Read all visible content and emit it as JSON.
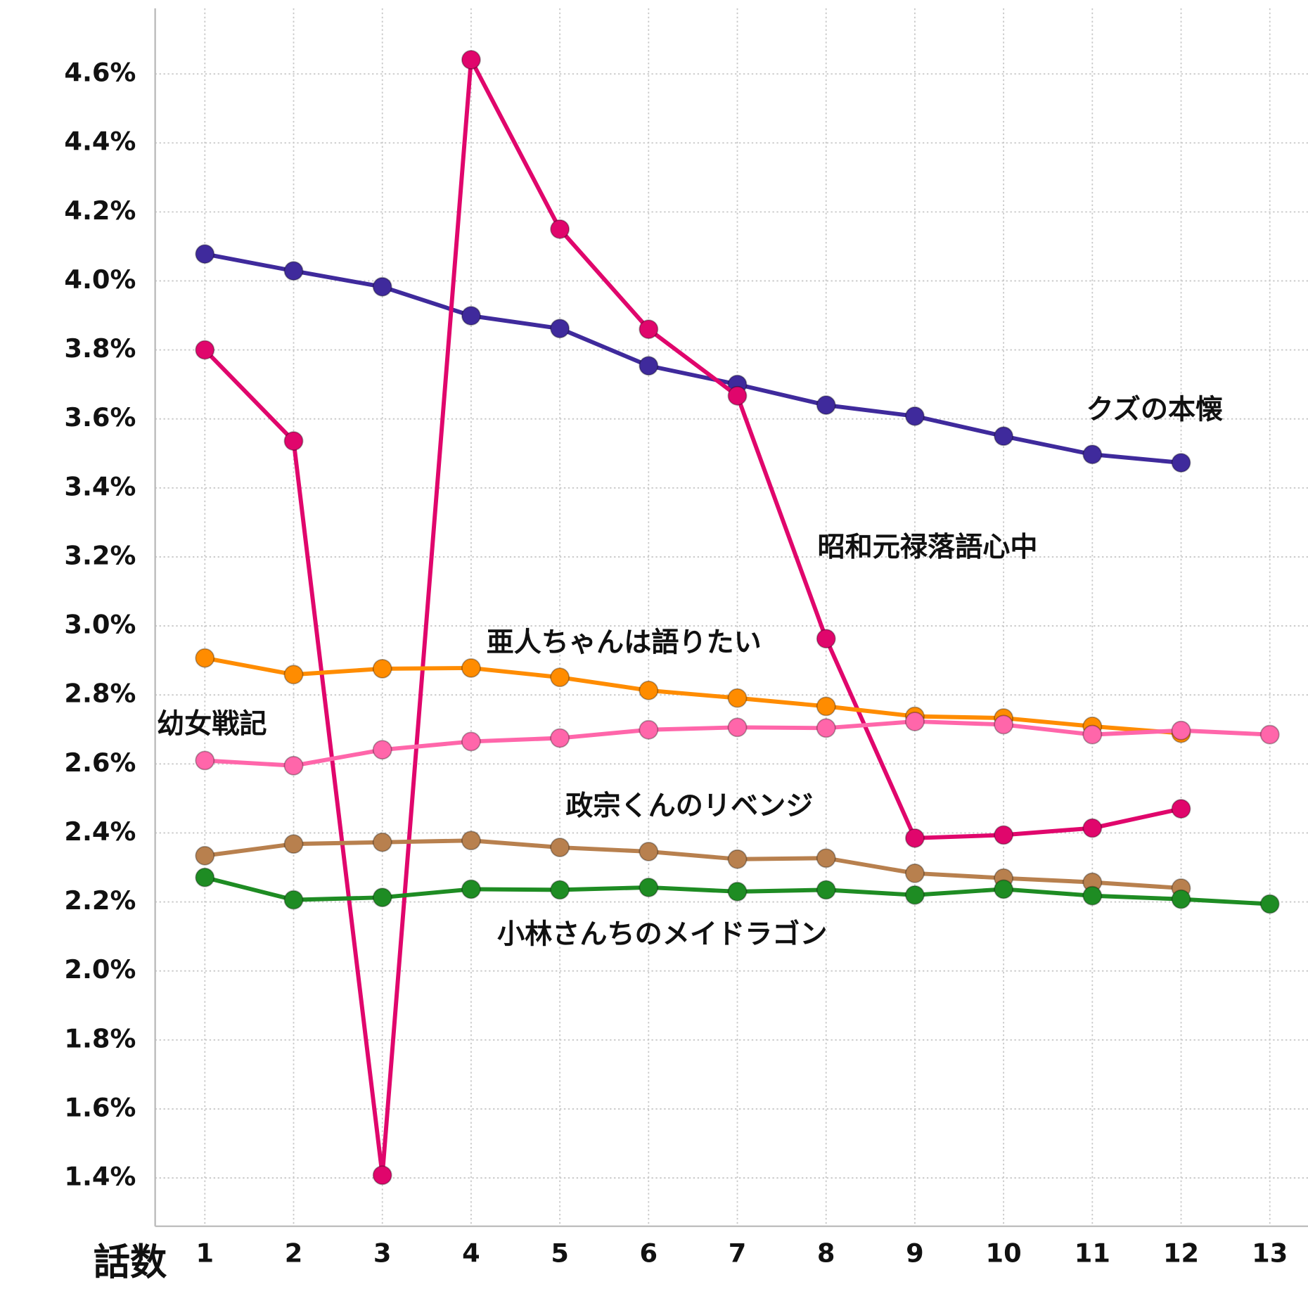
{
  "chart_data": {
    "type": "line",
    "x_label": "話数",
    "x": [
      1,
      2,
      3,
      4,
      5,
      6,
      7,
      8,
      9,
      10,
      11,
      12,
      13
    ],
    "xlim": [
      0.44,
      13.43
    ],
    "xticks": [
      1,
      2,
      3,
      4,
      5,
      6,
      7,
      8,
      9,
      10,
      11,
      12,
      13
    ],
    "ylim": [
      1.26,
      4.79
    ],
    "yticks": [
      {
        "value": 1.4,
        "label": "1.4%"
      },
      {
        "value": 1.6,
        "label": "1.6%"
      },
      {
        "value": 1.8,
        "label": "1.8%"
      },
      {
        "value": 2.0,
        "label": "2.0%"
      },
      {
        "value": 2.2,
        "label": "2.2%"
      },
      {
        "value": 2.4,
        "label": "2.4%"
      },
      {
        "value": 2.6,
        "label": "2.6%"
      },
      {
        "value": 2.8,
        "label": "2.8%"
      },
      {
        "value": 3.0,
        "label": "3.0%"
      },
      {
        "value": 3.2,
        "label": "3.2%"
      },
      {
        "value": 3.4,
        "label": "3.4%"
      },
      {
        "value": 3.6,
        "label": "3.6%"
      },
      {
        "value": 3.8,
        "label": "3.8%"
      },
      {
        "value": 4.0,
        "label": "4.0%"
      },
      {
        "value": 4.2,
        "label": "4.2%"
      },
      {
        "value": 4.4,
        "label": "4.4%"
      },
      {
        "value": 4.6,
        "label": "4.6%"
      }
    ],
    "grid": true,
    "series": [
      {
        "name": "クズの本懐",
        "color": "#3f2a9c",
        "values": [
          4.078,
          4.029,
          3.983,
          3.899,
          3.862,
          3.754,
          3.7,
          3.64,
          3.608,
          3.55,
          3.497,
          3.473,
          null
        ]
      },
      {
        "name": "昭和元禄落語心中",
        "color": "#e0066c",
        "values": [
          3.8,
          3.536,
          1.408,
          4.641,
          4.15,
          3.86,
          3.667,
          2.963,
          2.385,
          2.394,
          2.414,
          2.47,
          null
        ]
      },
      {
        "name": "亜人ちゃんは語りたい",
        "color": "#ff8c00",
        "values": [
          2.907,
          2.859,
          2.876,
          2.878,
          2.851,
          2.813,
          2.791,
          2.767,
          2.738,
          2.733,
          2.709,
          2.689,
          null
        ]
      },
      {
        "name": "幼女戦記",
        "color": "#ff66aa",
        "values": [
          2.61,
          2.595,
          2.641,
          2.665,
          2.675,
          2.699,
          2.706,
          2.704,
          2.723,
          2.714,
          2.685,
          2.697,
          2.685
        ]
      },
      {
        "name": "政宗くんのリベンジ",
        "color": "#b8804e",
        "values": [
          2.334,
          2.368,
          2.373,
          2.378,
          2.358,
          2.346,
          2.324,
          2.327,
          2.283,
          2.269,
          2.257,
          2.24,
          null
        ]
      },
      {
        "name": "小林さんちのメイドラゴン",
        "color": "#1e8c23",
        "values": [
          2.271,
          2.206,
          2.213,
          2.237,
          2.235,
          2.242,
          2.23,
          2.235,
          2.22,
          2.237,
          2.218,
          2.208,
          2.194
        ]
      }
    ]
  }
}
